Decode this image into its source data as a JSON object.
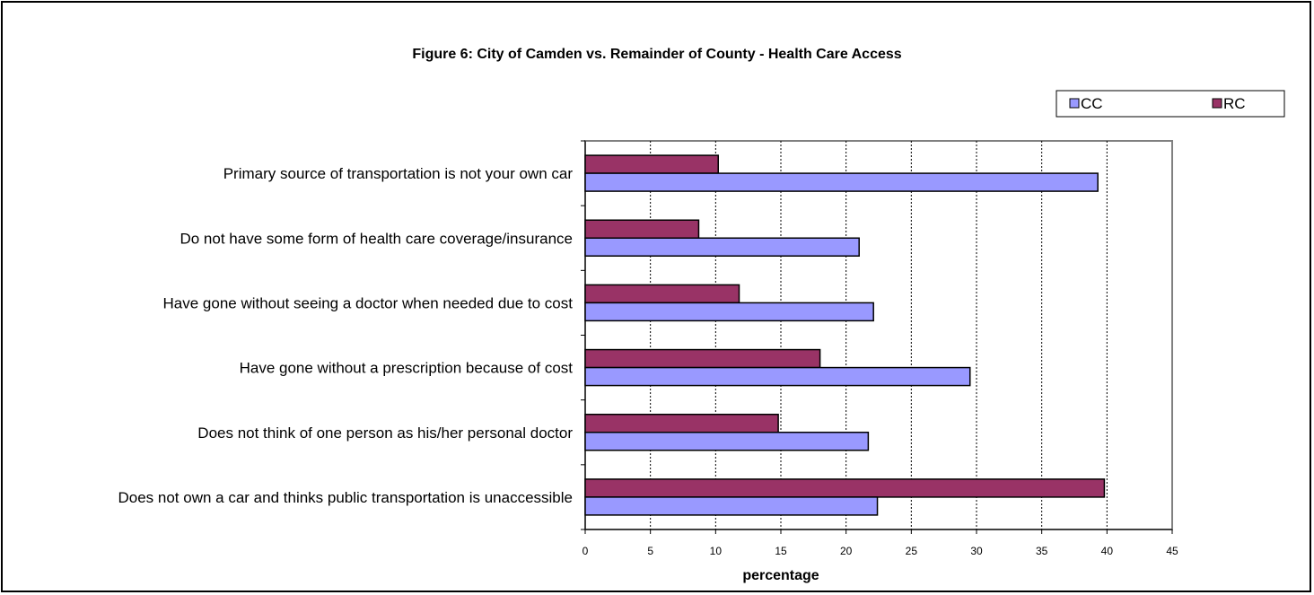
{
  "chart_data": {
    "type": "bar",
    "orientation": "horizontal",
    "title": "Figure 6:  City of Camden vs. Remainder of County - Health Care Access",
    "xlabel": "percentage",
    "ylabel": "",
    "xlim": [
      0,
      45
    ],
    "xticks": [
      0,
      5,
      10,
      15,
      20,
      25,
      30,
      35,
      40,
      45
    ],
    "grid": "vertical dashed",
    "legend_position": "top-right",
    "categories": [
      "Primary source of transportation is not your own car",
      "Do not have some form of health care coverage/insurance",
      "Have gone without seeing a doctor when needed due to cost",
      "Have gone without a prescription because of cost",
      "Does not think of one person as his/her personal doctor",
      "Does not own a car and thinks public transportation is unaccessible"
    ],
    "series": [
      {
        "name": "CC",
        "color": "#9999ff",
        "values": [
          39.3,
          21.0,
          22.1,
          29.5,
          21.7,
          22.4
        ]
      },
      {
        "name": "RC",
        "color": "#993366",
        "values": [
          10.2,
          8.7,
          11.8,
          18.0,
          14.8,
          39.8
        ]
      }
    ]
  }
}
